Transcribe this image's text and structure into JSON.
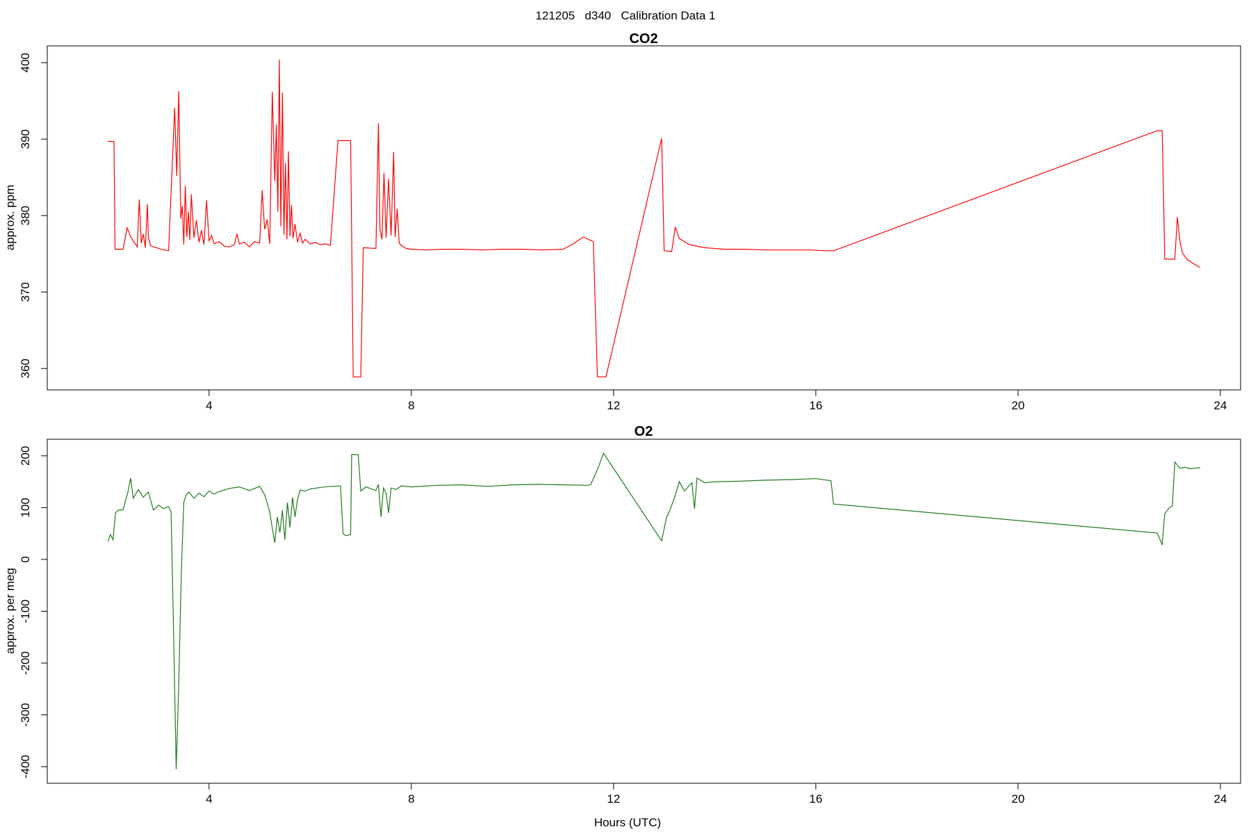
{
  "figure": {
    "suptitle": "121205   d340   Calibration Data 1"
  },
  "chart_data": [
    {
      "type": "line",
      "title": "CO2",
      "xlabel": "",
      "ylabel": "approx. ppm",
      "color": "#ff0000",
      "xlim": [
        0.8,
        24.4
      ],
      "ylim": [
        357.2,
        402.2
      ],
      "xticks": [
        4,
        8,
        12,
        16,
        20,
        24
      ],
      "yticks": [
        360,
        370,
        380,
        390,
        400
      ],
      "grid": false,
      "legend": "none",
      "series": [
        {
          "x": [
            2.0,
            2.12,
            2.14,
            2.3,
            2.38,
            2.45,
            2.52,
            2.58,
            2.62,
            2.66,
            2.7,
            2.74,
            2.78,
            2.8,
            2.84,
            2.9,
            2.96,
            3.05,
            3.2,
            3.32,
            3.36,
            3.4,
            3.44,
            3.47,
            3.5,
            3.53,
            3.56,
            3.59,
            3.62,
            3.65,
            3.7,
            3.75,
            3.8,
            3.85,
            3.9,
            3.95,
            4.0,
            4.05,
            4.1,
            4.2,
            4.3,
            4.4,
            4.5,
            4.55,
            4.6,
            4.7,
            4.8,
            4.9,
            5.0,
            5.05,
            5.1,
            5.15,
            5.2,
            5.25,
            5.3,
            5.33,
            5.36,
            5.39,
            5.42,
            5.45,
            5.48,
            5.51,
            5.54,
            5.57,
            5.6,
            5.63,
            5.66,
            5.7,
            5.75,
            5.8,
            5.85,
            5.9,
            6.0,
            6.1,
            6.2,
            6.3,
            6.4,
            6.55,
            6.6,
            6.65,
            6.8,
            6.85,
            6.95,
            7.0,
            7.05,
            7.3,
            7.35,
            7.38,
            7.42,
            7.46,
            7.5,
            7.55,
            7.6,
            7.65,
            7.68,
            7.72,
            7.76,
            7.8,
            7.85,
            7.9,
            8.0,
            8.3,
            8.6,
            9.0,
            9.4,
            9.8,
            10.2,
            10.6,
            11.0,
            11.2,
            11.4,
            11.6,
            11.68,
            11.72,
            11.85,
            12.95,
            13.0,
            13.15,
            13.22,
            13.3,
            13.5,
            13.8,
            14.2,
            14.6,
            15.0,
            15.5,
            15.9,
            16.2,
            16.35,
            22.75,
            22.85,
            22.9,
            23.1,
            23.15,
            23.2,
            23.25,
            23.35,
            23.5,
            23.6
          ],
          "values": [
            389.7,
            389.7,
            375.6,
            375.6,
            378.4,
            377.2,
            376.5,
            375.9,
            382.1,
            376.4,
            377.6,
            375.8,
            381.5,
            377.2,
            376.1,
            375.9,
            375.8,
            375.6,
            375.4,
            394.1,
            385.2,
            396.3,
            379.6,
            381.3,
            376.2,
            383.9,
            377.2,
            380.5,
            376.8,
            382.8,
            377.1,
            379.4,
            376.5,
            378.1,
            376.2,
            382.0,
            376.7,
            377.4,
            376.3,
            376.6,
            376.0,
            375.9,
            376.2,
            377.6,
            376.3,
            376.5,
            375.9,
            376.6,
            376.4,
            383.3,
            378.2,
            379.5,
            376.3,
            396.2,
            384.5,
            391.9,
            380.5,
            400.4,
            378.6,
            396.1,
            377.5,
            386.9,
            376.9,
            388.4,
            377.3,
            381.4,
            377.0,
            378.9,
            376.5,
            377.7,
            376.4,
            376.9,
            376.3,
            376.5,
            376.2,
            376.3,
            376.1,
            389.8,
            389.8,
            389.8,
            389.8,
            358.9,
            358.9,
            358.9,
            375.8,
            375.7,
            392.1,
            378.2,
            376.9,
            385.6,
            377.1,
            384.8,
            377.4,
            388.3,
            377.2,
            380.9,
            376.4,
            376.1,
            375.9,
            375.7,
            375.6,
            375.5,
            375.6,
            375.6,
            375.5,
            375.6,
            375.6,
            375.5,
            375.6,
            376.3,
            377.2,
            376.6,
            358.9,
            358.9,
            358.9,
            390.1,
            375.4,
            375.3,
            378.5,
            377.0,
            376.2,
            375.8,
            375.6,
            375.6,
            375.5,
            375.5,
            375.5,
            375.4,
            375.4,
            391.1,
            391.1,
            374.3,
            374.3,
            379.8,
            376.6,
            375.1,
            374.2,
            373.6,
            373.2
          ]
        }
      ]
    },
    {
      "type": "line",
      "title": "O2",
      "xlabel": "Hours (UTC)",
      "ylabel": "approx. per meg",
      "color": "#1f7a1f",
      "xlim": [
        0.8,
        24.4
      ],
      "ylim": [
        -432,
        232
      ],
      "xticks": [
        4,
        8,
        12,
        16,
        20,
        24
      ],
      "yticks": [
        -400,
        -300,
        -200,
        -100,
        0,
        100,
        200
      ],
      "grid": false,
      "legend": "none",
      "series": [
        {
          "x": [
            2.0,
            2.05,
            2.1,
            2.15,
            2.2,
            2.3,
            2.4,
            2.45,
            2.5,
            2.6,
            2.7,
            2.8,
            2.9,
            3.0,
            3.1,
            3.2,
            3.25,
            3.3,
            3.35,
            3.4,
            3.45,
            3.5,
            3.55,
            3.6,
            3.7,
            3.8,
            3.9,
            4.0,
            4.1,
            4.2,
            4.4,
            4.6,
            4.8,
            5.0,
            5.1,
            5.2,
            5.25,
            5.3,
            5.35,
            5.4,
            5.45,
            5.5,
            5.55,
            5.6,
            5.65,
            5.7,
            5.75,
            5.8,
            5.9,
            6.0,
            6.2,
            6.4,
            6.6,
            6.65,
            6.7,
            6.8,
            6.82,
            6.95,
            7.0,
            7.1,
            7.3,
            7.35,
            7.4,
            7.45,
            7.5,
            7.55,
            7.6,
            7.7,
            7.8,
            8.0,
            8.5,
            9.0,
            9.5,
            10.0,
            10.5,
            11.0,
            11.5,
            11.55,
            11.7,
            11.8,
            12.95,
            13.05,
            13.1,
            13.2,
            13.3,
            13.4,
            13.55,
            13.6,
            13.65,
            13.8,
            14.0,
            14.5,
            15.0,
            15.5,
            16.0,
            16.3,
            16.35,
            22.75,
            22.8,
            22.85,
            22.9,
            23.0,
            23.05,
            23.1,
            23.2,
            23.3,
            23.4,
            23.5,
            23.6
          ],
          "values": [
            35,
            48,
            38,
            90,
            95,
            96,
            132,
            157,
            118,
            135,
            120,
            130,
            95,
            105,
            98,
            102,
            92,
            -150,
            -405,
            -240,
            -30,
            110,
            125,
            130,
            118,
            128,
            121,
            132,
            126,
            131,
            137,
            140,
            133,
            141,
            125,
            92,
            60,
            32,
            82,
            52,
            95,
            38,
            110,
            62,
            120,
            82,
            116,
            134,
            132,
            136,
            139,
            141,
            142,
            50,
            46,
            48,
            203,
            202,
            132,
            140,
            133,
            145,
            82,
            138,
            128,
            90,
            138,
            135,
            142,
            140,
            143,
            144,
            141,
            144,
            145,
            144,
            143,
            145,
            178,
            205,
            36,
            82,
            92,
            118,
            150,
            132,
            148,
            98,
            157,
            148,
            150,
            151,
            153,
            154,
            156,
            152,
            107,
            51,
            40,
            28,
            88,
            101,
            103,
            188,
            176,
            178,
            175,
            176,
            177
          ]
        }
      ]
    }
  ]
}
